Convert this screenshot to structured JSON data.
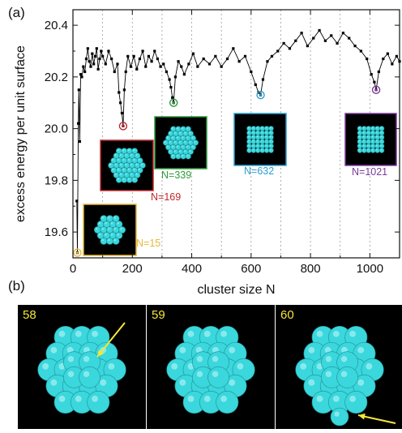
{
  "figure": {
    "panel_a_label": "(a)",
    "panel_b_label": "(b)"
  },
  "chart_data": {
    "type": "line",
    "title": "",
    "xlabel": "cluster size N",
    "ylabel": "excess energy per unit surface",
    "xlim": [
      0,
      1100
    ],
    "ylim": [
      19.5,
      20.46
    ],
    "xticks": [
      0,
      200,
      400,
      600,
      800,
      1000
    ],
    "yticks": [
      19.6,
      19.8,
      20.0,
      20.2,
      20.4
    ],
    "xtick_labels": [
      "0",
      "200",
      "400",
      "600",
      "800",
      "1000"
    ],
    "ytick_labels": [
      "19.6",
      "19.8",
      "20.0",
      "20.2",
      "20.4"
    ],
    "vertical_gridlines_x": [
      100,
      200,
      300,
      400,
      500,
      600,
      700,
      800,
      900,
      1000
    ],
    "grid": "vertical dotted",
    "series": [
      {
        "color": "#000000",
        "marker": "square",
        "x": [
          13,
          15,
          18,
          20,
          23,
          26,
          30,
          35,
          40,
          45,
          50,
          55,
          60,
          65,
          70,
          75,
          80,
          85,
          90,
          95,
          100,
          110,
          120,
          130,
          140,
          150,
          155,
          160,
          165,
          169,
          173,
          178,
          185,
          195,
          205,
          215,
          225,
          235,
          245,
          255,
          265,
          275,
          285,
          295,
          305,
          315,
          325,
          330,
          335,
          339,
          345,
          355,
          365,
          375,
          390,
          405,
          420,
          440,
          460,
          480,
          500,
          520,
          540,
          560,
          580,
          600,
          615,
          625,
          632,
          640,
          655,
          670,
          690,
          710,
          730,
          750,
          770,
          790,
          810,
          830,
          850,
          870,
          890,
          910,
          930,
          950,
          970,
          990,
          1005,
          1015,
          1021,
          1030,
          1045,
          1060,
          1075,
          1090,
          1100
        ],
        "values": [
          19.72,
          19.52,
          20.02,
          20.15,
          19.95,
          20.21,
          20.2,
          20.24,
          20.22,
          20.27,
          20.31,
          20.26,
          20.24,
          20.29,
          20.25,
          20.28,
          20.31,
          20.23,
          20.27,
          20.3,
          20.28,
          20.25,
          20.3,
          20.27,
          20.22,
          20.25,
          20.14,
          20.1,
          20.06,
          20.01,
          20.15,
          20.22,
          20.28,
          20.24,
          20.28,
          20.23,
          20.27,
          20.3,
          20.24,
          20.28,
          20.26,
          20.3,
          20.27,
          20.24,
          20.25,
          20.22,
          20.19,
          20.16,
          20.12,
          20.1,
          20.2,
          20.26,
          20.24,
          20.21,
          20.25,
          20.29,
          20.24,
          20.27,
          20.25,
          20.28,
          20.24,
          20.27,
          20.31,
          20.26,
          20.28,
          20.22,
          20.17,
          20.14,
          20.13,
          20.19,
          20.26,
          20.28,
          20.3,
          20.33,
          20.31,
          20.34,
          20.37,
          20.32,
          20.35,
          20.38,
          20.34,
          20.36,
          20.33,
          20.37,
          20.35,
          20.32,
          20.3,
          20.27,
          20.21,
          20.18,
          20.15,
          20.22,
          20.27,
          20.29,
          20.25,
          20.28,
          20.26
        ]
      }
    ],
    "highlighted_points": [
      {
        "label": "N=15",
        "x": 15,
        "y": 19.52,
        "color": "#e8b73a"
      },
      {
        "label": "N=169",
        "x": 169,
        "y": 20.01,
        "color": "#c0282c"
      },
      {
        "label": "N=339",
        "x": 339,
        "y": 20.1,
        "color": "#2e9a3e"
      },
      {
        "label": "N=632",
        "x": 632,
        "y": 20.13,
        "color": "#2a9fd0"
      },
      {
        "label": "N=1021",
        "x": 1021,
        "y": 20.15,
        "color": "#7a3a9a"
      }
    ]
  },
  "panel_b": {
    "panels": [
      {
        "number": "58",
        "arrow": "pointing to a sphere in the centre"
      },
      {
        "number": "59",
        "arrow": ""
      },
      {
        "number": "60",
        "arrow": "pointing to a sphere at the bottom"
      }
    ]
  },
  "colors": {
    "sphere": "#3ad7dc",
    "arrow": "#f5e63a",
    "panel_background": "#000000"
  }
}
